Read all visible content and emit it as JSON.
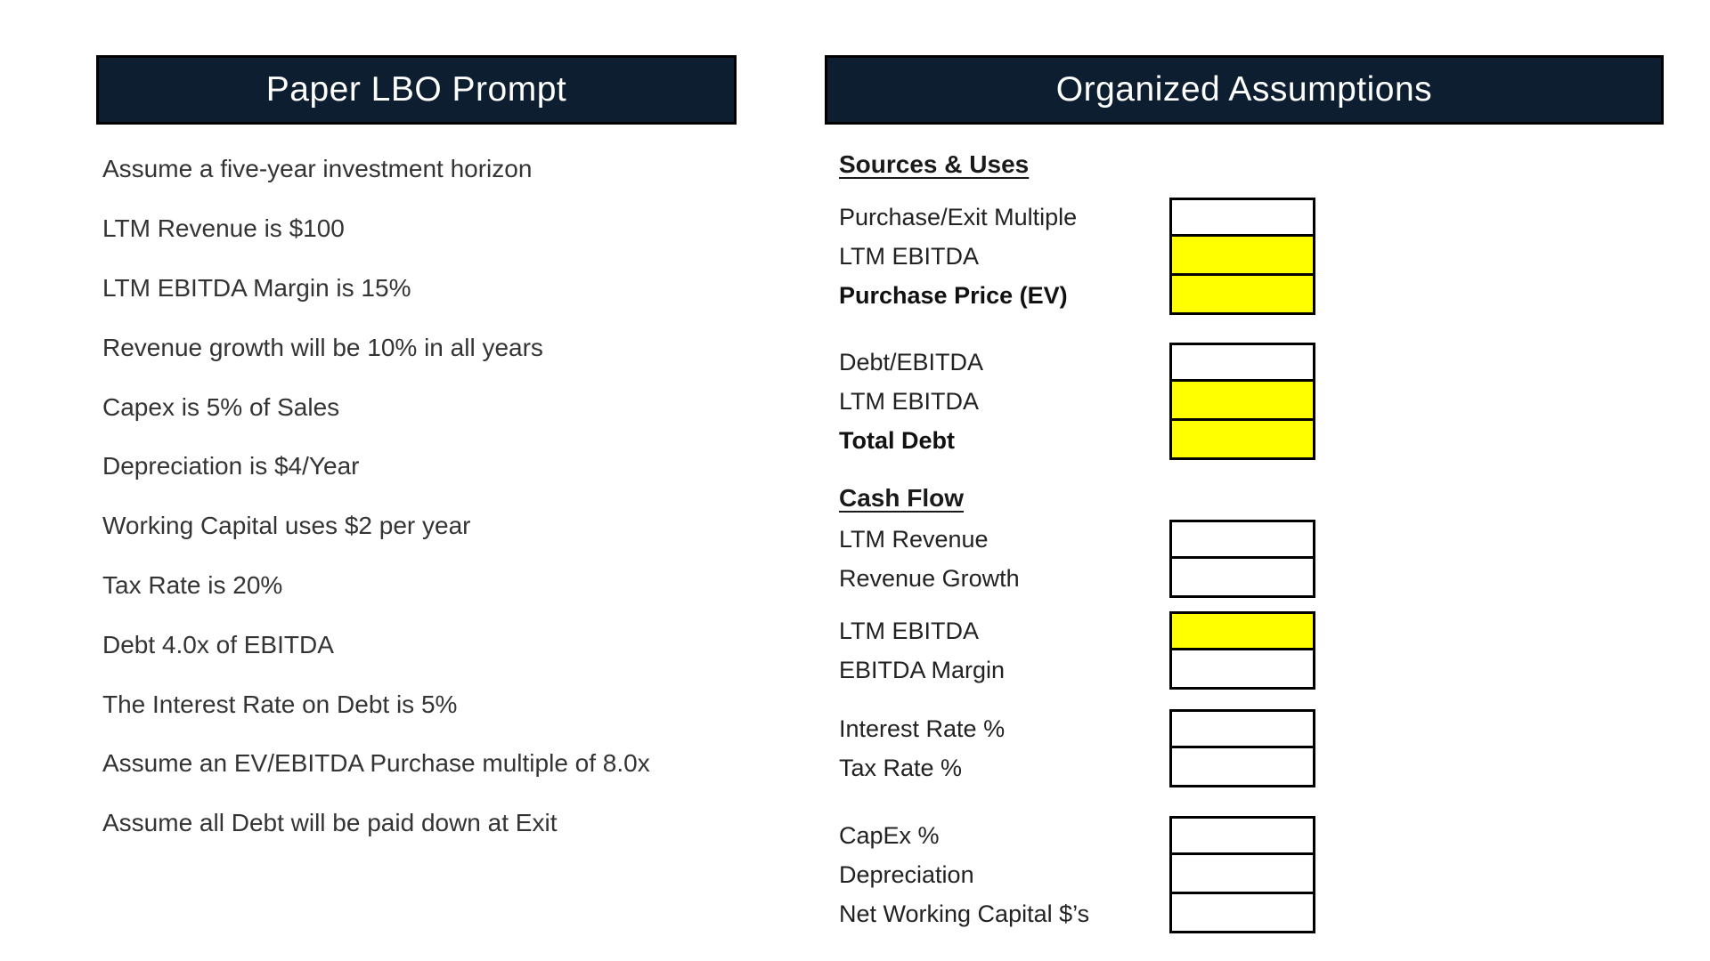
{
  "colors": {
    "header_bg": "#0d1e31",
    "header_text": "#ffffff",
    "cell_highlight": "#ffff00",
    "cell_default": "#ffffff",
    "cell_border": "#000000"
  },
  "left_panel": {
    "title": "Paper LBO Prompt",
    "items": [
      "Assume a five-year investment horizon",
      "LTM Revenue is $100",
      "LTM EBITDA Margin is 15%",
      "Revenue growth will be 10% in all years",
      "Capex is 5% of Sales",
      "Depreciation is $4/Year",
      "Working Capital uses $2 per year",
      "Tax Rate is 20%",
      "Debt 4.0x of EBITDA",
      "The Interest Rate on Debt is 5%",
      "Assume an EV/EBITDA Purchase multiple of 8.0x",
      "Assume all Debt will be paid down at Exit"
    ]
  },
  "right_panel": {
    "title": "Organized Assumptions",
    "section_headings": {
      "sources_uses": "Sources & Uses",
      "cash_flow": "Cash Flow"
    },
    "groups": [
      {
        "rows": [
          {
            "label": "Purchase/Exit Multiple",
            "fill": "white",
            "weight": "normal"
          },
          {
            "label": "LTM EBITDA",
            "fill": "yellow",
            "weight": "normal"
          },
          {
            "label": "Purchase Price (EV)",
            "fill": "yellow",
            "weight": "bold"
          }
        ]
      },
      {
        "rows": [
          {
            "label": "Debt/EBITDA",
            "fill": "white",
            "weight": "normal"
          },
          {
            "label": "LTM EBITDA",
            "fill": "yellow",
            "weight": "normal"
          },
          {
            "label": "Total Debt",
            "fill": "yellow",
            "weight": "bold"
          }
        ]
      },
      {
        "rows": [
          {
            "label": "LTM Revenue",
            "fill": "white",
            "weight": "normal"
          },
          {
            "label": "Revenue Growth",
            "fill": "white",
            "weight": "normal"
          }
        ]
      },
      {
        "rows": [
          {
            "label": "LTM EBITDA",
            "fill": "yellow",
            "weight": "normal"
          },
          {
            "label": "EBITDA Margin",
            "fill": "white",
            "weight": "normal"
          }
        ]
      },
      {
        "rows": [
          {
            "label": "Interest Rate %",
            "fill": "white",
            "weight": "normal"
          },
          {
            "label": "Tax Rate %",
            "fill": "white",
            "weight": "normal"
          }
        ]
      },
      {
        "rows": [
          {
            "label": "CapEx %",
            "fill": "white",
            "weight": "normal"
          },
          {
            "label": "Depreciation",
            "fill": "white",
            "weight": "normal"
          },
          {
            "label": "Net Working Capital $’s",
            "fill": "white",
            "weight": "normal"
          }
        ]
      }
    ]
  }
}
